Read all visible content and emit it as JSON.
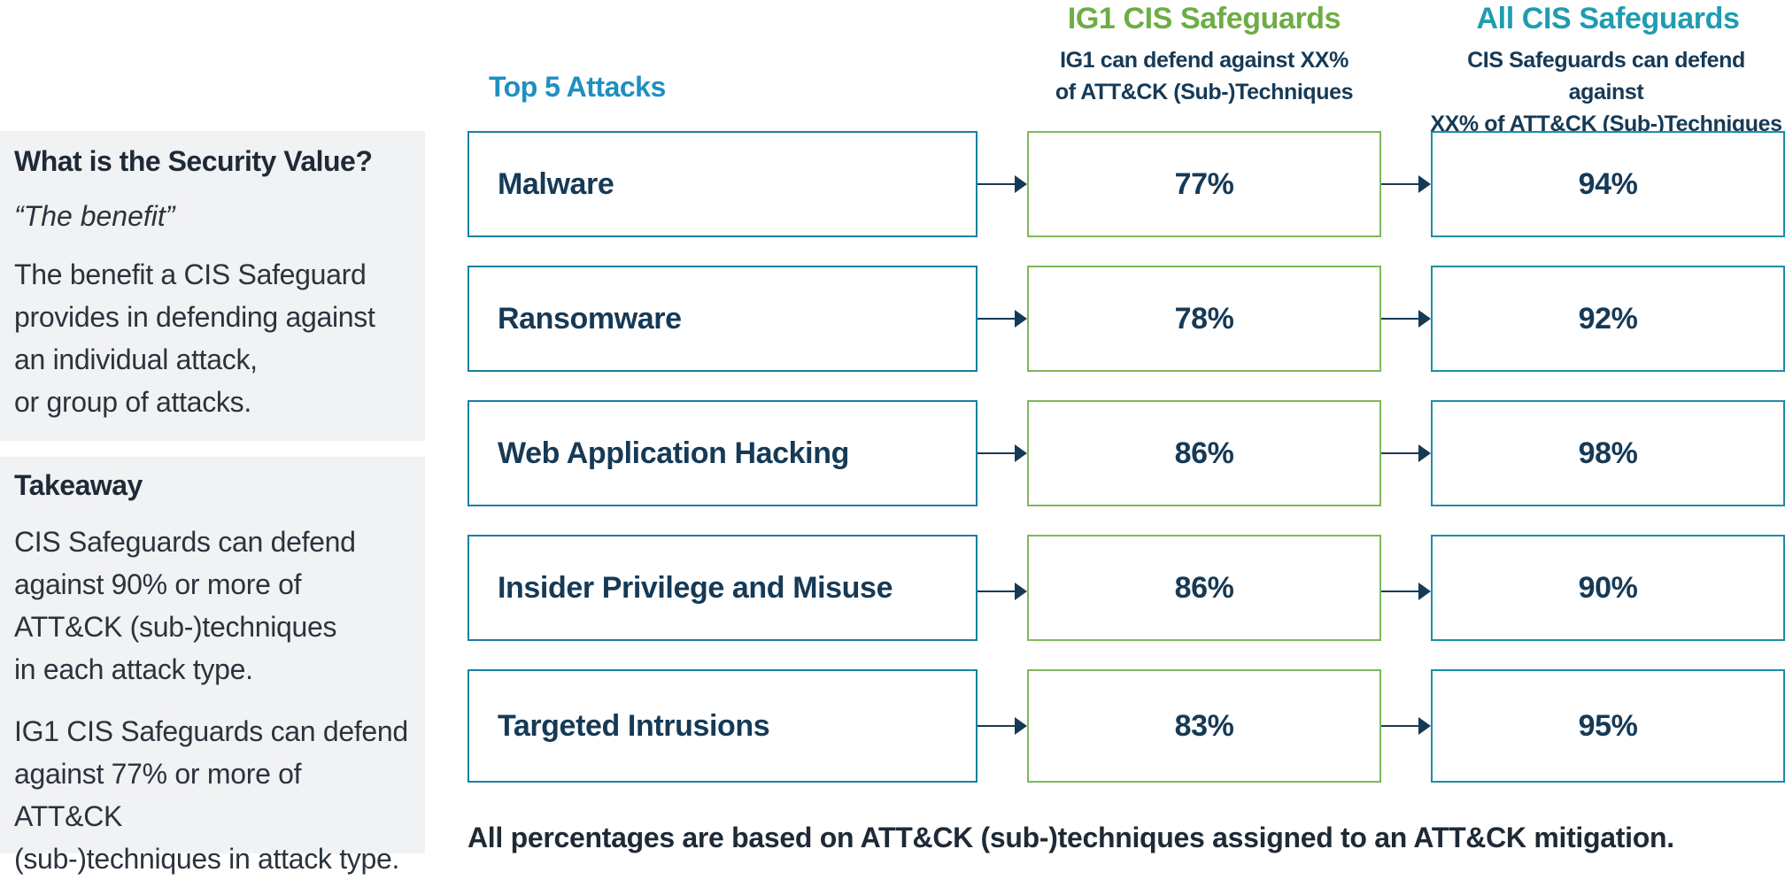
{
  "panels": {
    "security_value": {
      "heading": "What is the Security Value?",
      "subheading": "“The benefit”",
      "body_lines": [
        "The benefit a CIS Safeguard",
        "provides in defending against",
        "an individual attack,",
        "or group of attacks."
      ]
    },
    "takeaway": {
      "heading": "Takeaway",
      "paragraph1_lines": [
        "CIS Safeguards can defend",
        "against 90% or more of",
        "ATT&CK (sub-)techniques",
        "in each attack type."
      ],
      "paragraph2_lines": [
        "IG1 CIS Safeguards can defend",
        "against 77% or more of ATT&CK",
        "(sub-)techniques in attack type."
      ]
    }
  },
  "columns": {
    "attacks": {
      "title": "Top 5 Attacks"
    },
    "ig1": {
      "title": "IG1 CIS Safeguards",
      "subtitle_lines": [
        "IG1 can defend against XX%",
        "of ATT&CK (Sub-)Techniques"
      ]
    },
    "all": {
      "title": "All CIS Safeguards",
      "subtitle_lines": [
        "CIS Safeguards can defend against",
        "XX% of ATT&CK (Sub-)Techniques"
      ]
    }
  },
  "rows": [
    {
      "attack": "Malware",
      "ig1": "77%",
      "all": "94%"
    },
    {
      "attack": "Ransomware",
      "ig1": "78%",
      "all": "92%"
    },
    {
      "attack": "Web Application Hacking",
      "ig1": "86%",
      "all": "98%"
    },
    {
      "attack": "Insider Privilege and Misuse",
      "ig1": "86%",
      "all": "90%"
    },
    {
      "attack": "Targeted Intrusions",
      "ig1": "83%",
      "all": "95%"
    }
  ],
  "footnote": "All percentages are based on ATT&CK (sub-)techniques assigned to an ATT&CK mitigation.",
  "colors": {
    "attack_border": "#1a7fa3",
    "ig1_border": "#7fb85a",
    "all_border": "#1a8fa3",
    "ig1_title": "#6dad45",
    "all_title": "#1f9cb0",
    "attacks_title": "#1f8fc0",
    "text_dark": "#163a56",
    "panel_bg": "#f1f2f4"
  }
}
